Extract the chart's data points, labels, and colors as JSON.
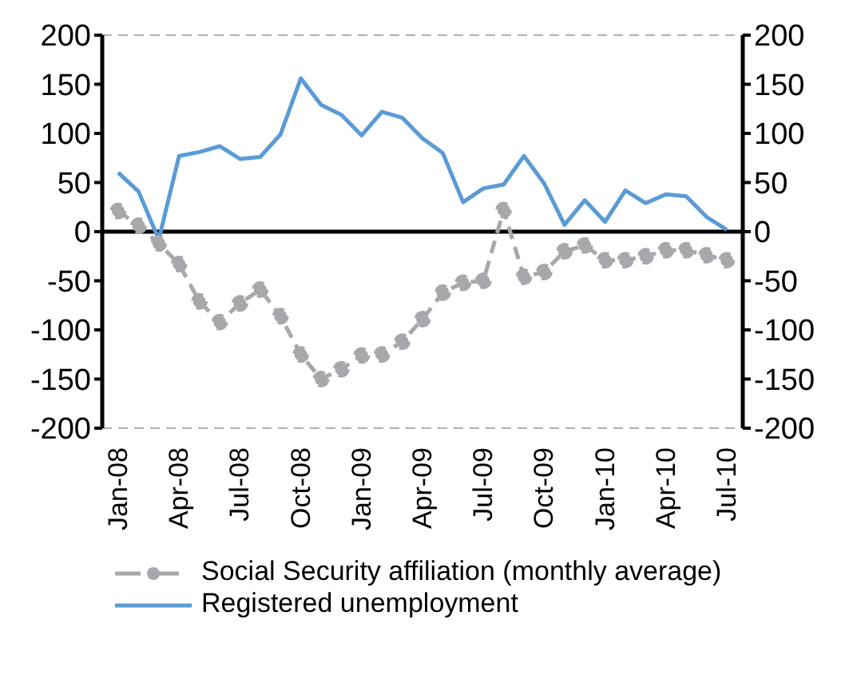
{
  "chart_data": {
    "type": "line",
    "categories": [
      "Jan-08",
      null,
      null,
      "Apr-08",
      null,
      null,
      "Jul-08",
      null,
      null,
      "Oct-08",
      null,
      null,
      "Jan-09",
      null,
      null,
      "Apr-09",
      null,
      null,
      "Jul-09",
      null,
      null,
      "Oct-09",
      null,
      null,
      "Jan-10",
      null,
      null,
      "Apr-10",
      null,
      null,
      "Jul-10"
    ],
    "series": [
      {
        "name": "Social Security affiliation (monthly average)",
        "color": "#a6a8ab",
        "line_style": "dashed",
        "marker": "circle",
        "values": [
          21,
          6,
          -12,
          -33,
          -71,
          -92,
          -73,
          -59,
          -86,
          -125,
          -150,
          -140,
          -126,
          -125,
          -112,
          -89,
          -62,
          -52,
          -50,
          22,
          -46,
          -41,
          -20,
          -14,
          -29,
          -29,
          -25,
          -19,
          -19,
          -24,
          -29
        ]
      },
      {
        "name": "Registered unemployment",
        "color": "#5b9bd5",
        "line_style": "solid",
        "marker": "none",
        "values": [
          60,
          41,
          -8,
          77,
          81,
          87,
          74,
          76,
          99,
          156,
          129,
          119,
          98,
          122,
          116,
          95,
          80,
          30,
          44,
          48,
          77,
          49,
          7,
          32,
          10,
          42,
          29,
          38,
          36,
          15,
          2
        ]
      }
    ],
    "ylim": [
      -200,
      200
    ],
    "yticks": [
      -200,
      -150,
      -100,
      -50,
      0,
      50,
      100,
      150,
      200
    ],
    "y2lim": [
      -200,
      200
    ],
    "y2ticks": [
      -200,
      -150,
      -100,
      -50,
      0,
      50,
      100,
      150,
      200
    ],
    "grid": "y",
    "legend": "bottom"
  }
}
